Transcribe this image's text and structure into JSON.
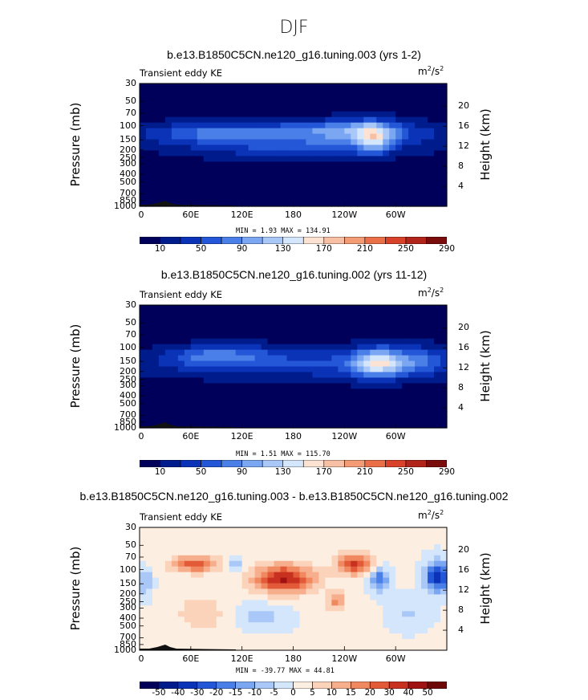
{
  "figure_title": "DJF",
  "panel_label": "Transient eddy KE",
  "units_text": "m²/s²",
  "units_base": "m",
  "units_sup1": "2",
  "units_mid": "/s",
  "units_sup2": "2",
  "y_left_title": "Pressure (mb)",
  "y_right_title": "Height (km)",
  "chart_data": [
    {
      "type": "heatmap",
      "title": "b.e13.B1850C5CN.ne120_g16.tuning.003 (yrs 1-2)",
      "xlabel": "",
      "ylabel": "Pressure (mb)",
      "y_ticks": [
        "30",
        "50",
        "70",
        "100",
        "150",
        "200",
        "250",
        "300",
        "400",
        "500",
        "700",
        "850",
        "1000"
      ],
      "y_right_ticks": [
        "20",
        "16",
        "12",
        "8",
        "4"
      ],
      "x_ticks": [
        "0",
        "60E",
        "120E",
        "180",
        "120W",
        "60W"
      ],
      "stats": "MIN =   1.93   MAX = 134.91",
      "min": 1.93,
      "max": 134.91,
      "colorbar_ticks": [
        "10",
        "50",
        "90",
        "130",
        "170",
        "210",
        "250",
        "290"
      ],
      "colorbar_colors": [
        "#00005a",
        "#001c8c",
        "#0a33b8",
        "#2456d8",
        "#4a7fe8",
        "#7aa6f2",
        "#a9c8f8",
        "#d4e6fc",
        "#fbe2d2",
        "#f7c0a4",
        "#f29b74",
        "#ea6f48",
        "#d8422a",
        "#b0241a",
        "#7a0c0c"
      ],
      "levels": [
        10,
        30,
        50,
        70,
        90,
        110,
        130
      ],
      "value_range": [
        0,
        135
      ]
    },
    {
      "type": "heatmap",
      "title": "b.e13.B1850C5CN.ne120_g16.tuning.002 (yrs 11-12)",
      "xlabel": "",
      "ylabel": "Pressure (mb)",
      "y_ticks": [
        "30",
        "50",
        "70",
        "100",
        "150",
        "200",
        "250",
        "300",
        "400",
        "500",
        "700",
        "850",
        "1000"
      ],
      "y_right_ticks": [
        "20",
        "16",
        "12",
        "8",
        "4"
      ],
      "x_ticks": [
        "0",
        "60E",
        "120E",
        "180",
        "120W",
        "60W"
      ],
      "stats": "MIN =   1.51   MAX = 115.70",
      "min": 1.51,
      "max": 115.7,
      "colorbar_ticks": [
        "10",
        "50",
        "90",
        "130",
        "170",
        "210",
        "250",
        "290"
      ],
      "colorbar_colors": [
        "#00005a",
        "#001c8c",
        "#0a33b8",
        "#2456d8",
        "#4a7fe8",
        "#7aa6f2",
        "#a9c8f8",
        "#d4e6fc",
        "#fbe2d2",
        "#f7c0a4",
        "#f29b74",
        "#ea6f48",
        "#d8422a",
        "#b0241a",
        "#7a0c0c"
      ],
      "levels": [
        10,
        30,
        50,
        70,
        90,
        110
      ],
      "value_range": [
        0,
        116
      ]
    },
    {
      "type": "heatmap",
      "title": "b.e13.B1850C5CN.ne120_g16.tuning.003 - b.e13.B1850C5CN.ne120_g16.tuning.002",
      "xlabel": "",
      "ylabel": "Pressure (mb)",
      "y_ticks": [
        "30",
        "50",
        "70",
        "100",
        "150",
        "200",
        "250",
        "300",
        "400",
        "500",
        "700",
        "850",
        "1000"
      ],
      "y_right_ticks": [
        "20",
        "16",
        "12",
        "8",
        "4"
      ],
      "x_ticks": [
        "0",
        "60E",
        "120E",
        "180",
        "120W",
        "60W"
      ],
      "stats": "MIN = -39.77   MAX =  44.81",
      "min": -39.77,
      "max": 44.81,
      "colorbar_ticks": [
        "-50",
        "-40",
        "-30",
        "-20",
        "-15",
        "-10",
        "-5",
        "0",
        "5",
        "10",
        "15",
        "20",
        "30",
        "40",
        "50"
      ],
      "colorbar_colors": [
        "#00005a",
        "#001c8c",
        "#0a33b8",
        "#2456d8",
        "#4a7fe8",
        "#7aa6f2",
        "#a9c8f8",
        "#d4e6fc",
        "#fdeee2",
        "#fbd3bb",
        "#f7ae8c",
        "#f08860",
        "#e35a38",
        "#c8301f",
        "#a01212",
        "#6e0808"
      ],
      "levels": [
        -30,
        -20,
        -10,
        -5,
        0,
        5,
        10,
        15,
        20,
        30
      ],
      "value_range": [
        -40,
        45
      ]
    }
  ]
}
